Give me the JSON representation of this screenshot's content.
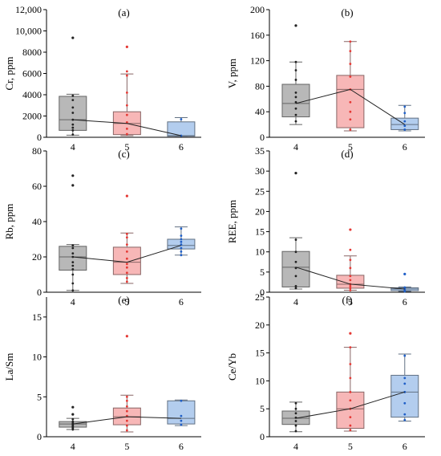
{
  "chart_data": [
    {
      "type": "box",
      "panel_label": "(a)",
      "ylabel": "Cr, ppm",
      "ylim": [
        0,
        12000
      ],
      "yticks": [
        0,
        2000,
        4000,
        6000,
        8000,
        10000,
        12000
      ],
      "ytick_labels": [
        "0",
        "2000",
        "4000",
        "6000",
        "8000",
        "10,000",
        "12,000"
      ],
      "categories": [
        "4",
        "5",
        "6"
      ],
      "boxes": [
        {
          "whisker_low": 200,
          "q1": 650,
          "median": 1650,
          "q3": 3850,
          "whisker_high": 4050,
          "outliers": [
            9350
          ],
          "points": [
            250,
            650,
            900,
            1200,
            1650,
            2300,
            2800,
            3500,
            3900
          ]
        },
        {
          "whisker_low": 150,
          "q1": 250,
          "median": 1300,
          "q3": 2400,
          "whisker_high": 5950,
          "outliers": [
            8500
          ],
          "points": [
            300,
            800,
            1400,
            2100,
            3000,
            4200,
            5800,
            6200
          ]
        },
        {
          "whisker_low": 100,
          "q1": 100,
          "median": 150,
          "q3": 1450,
          "whisker_high": 1850,
          "outliers": [],
          "points": [
            150,
            1700
          ]
        }
      ],
      "colors": [
        "#b8b8b8",
        "#f7b7b7",
        "#b3cdee"
      ],
      "point_colors": [
        "#222222",
        "#e53935",
        "#1f5fc8"
      ]
    },
    {
      "type": "box",
      "panel_label": "(b)",
      "ylabel": "V, ppm",
      "ylim": [
        0,
        200
      ],
      "yticks": [
        0,
        40,
        80,
        120,
        160,
        200
      ],
      "ytick_labels": [
        "0",
        "40",
        "80",
        "120",
        "160",
        "200"
      ],
      "categories": [
        "4",
        "5",
        "6"
      ],
      "boxes": [
        {
          "whisker_low": 20,
          "q1": 32,
          "median": 53,
          "q3": 83,
          "whisker_high": 118,
          "outliers": [
            175
          ],
          "points": [
            25,
            35,
            45,
            55,
            63,
            70,
            90,
            105,
            118
          ]
        },
        {
          "whisker_low": 10,
          "q1": 15,
          "median": 75,
          "q3": 97,
          "whisker_high": 150,
          "outliers": [],
          "points": [
            12,
            28,
            40,
            55,
            75,
            95,
            115,
            135,
            150
          ]
        },
        {
          "whisker_low": 10,
          "q1": 12,
          "median": 20,
          "q3": 30,
          "whisker_high": 50,
          "outliers": [],
          "points": [
            12,
            18,
            25,
            38,
            48
          ]
        }
      ],
      "colors": [
        "#b8b8b8",
        "#f7b7b7",
        "#b3cdee"
      ],
      "point_colors": [
        "#222222",
        "#e53935",
        "#1f5fc8"
      ]
    },
    {
      "type": "box",
      "panel_label": "(c)",
      "ylabel": "Rb, ppm",
      "ylim": [
        0,
        80
      ],
      "yticks": [
        0,
        20,
        40,
        60,
        80
      ],
      "ytick_labels": [
        "0",
        "20",
        "40",
        "60",
        "80"
      ],
      "categories": [
        "4",
        "5",
        "6"
      ],
      "boxes": [
        {
          "whisker_low": 1,
          "q1": 12.5,
          "median": 20,
          "q3": 26,
          "whisker_high": 27,
          "outliers": [
            60.5,
            66
          ],
          "points": [
            1,
            5,
            10,
            13,
            15,
            17,
            20,
            22,
            25,
            26.5
          ]
        },
        {
          "whisker_low": 5,
          "q1": 10,
          "median": 17,
          "q3": 25.5,
          "whisker_high": 33.5,
          "outliers": [
            54.5
          ],
          "points": [
            6,
            8,
            11,
            14,
            16,
            19,
            23,
            27,
            31,
            33
          ]
        },
        {
          "whisker_low": 21,
          "q1": 24.5,
          "median": 26.5,
          "q3": 30,
          "whisker_high": 37,
          "outliers": [],
          "points": [
            21,
            23,
            25,
            27,
            28.5,
            30,
            32,
            36
          ]
        }
      ],
      "colors": [
        "#b8b8b8",
        "#f7b7b7",
        "#b3cdee"
      ],
      "point_colors": [
        "#222222",
        "#e53935",
        "#1f5fc8"
      ]
    },
    {
      "type": "box",
      "panel_label": "(d)",
      "ylabel": "REE, ppm",
      "ylim": [
        0,
        35
      ],
      "yticks": [
        0,
        5,
        10,
        15,
        20,
        25,
        30,
        35
      ],
      "ytick_labels": [
        "0",
        "5",
        "10",
        "15",
        "20",
        "25",
        "30",
        "35"
      ],
      "categories": [
        "4",
        "5",
        "6"
      ],
      "boxes": [
        {
          "whisker_low": 0.8,
          "q1": 1.3,
          "median": 6.2,
          "q3": 10.1,
          "whisker_high": 13.5,
          "outliers": [
            29.5
          ],
          "points": [
            1,
            1.5,
            4,
            6,
            7.5,
            10,
            13
          ]
        },
        {
          "whisker_low": 0.5,
          "q1": 1.0,
          "median": 2.0,
          "q3": 4.2,
          "whisker_high": 9.0,
          "outliers": [
            15.5
          ],
          "points": [
            0.5,
            1,
            1.5,
            2,
            3,
            4,
            6,
            8,
            10.5
          ]
        },
        {
          "whisker_low": 0.2,
          "q1": 0.4,
          "median": 0.8,
          "q3": 1.1,
          "whisker_high": 1.3,
          "outliers": [
            4.5
          ],
          "points": [
            0.2,
            0.5,
            0.8,
            1,
            1.2
          ]
        }
      ],
      "colors": [
        "#b8b8b8",
        "#f7b7b7",
        "#b3cdee"
      ],
      "point_colors": [
        "#222222",
        "#e53935",
        "#1f5fc8"
      ]
    },
    {
      "type": "box",
      "panel_label": "(e)",
      "ylabel": "La/Sm",
      "ylim": [
        0,
        17.5
      ],
      "yticks": [
        0,
        5,
        10,
        15
      ],
      "ytick_labels": [
        "0",
        "5",
        "10",
        "15"
      ],
      "categories": [
        "4",
        "5",
        "6"
      ],
      "boxes": [
        {
          "whisker_low": 0.9,
          "q1": 1.2,
          "median": 1.6,
          "q3": 1.9,
          "whisker_high": 2.3,
          "outliers": [
            2.8,
            3.7
          ],
          "points": [
            0.9,
            1.1,
            1.3,
            1.5,
            1.7,
            1.9,
            2.2
          ]
        },
        {
          "whisker_low": 0.6,
          "q1": 1.5,
          "median": 2.5,
          "q3": 3.6,
          "whisker_high": 5.2,
          "outliers": [
            12.6
          ],
          "points": [
            0.8,
            1.4,
            2.0,
            2.6,
            3.2,
            3.8,
            4.5,
            5.0
          ]
        },
        {
          "whisker_low": 1.4,
          "q1": 1.6,
          "median": 2.3,
          "q3": 4.5,
          "whisker_high": 4.6,
          "outliers": [],
          "points": [
            1.5,
            2.0,
            2.6,
            4.5
          ]
        }
      ],
      "colors": [
        "#b8b8b8",
        "#f7b7b7",
        "#b3cdee"
      ],
      "point_colors": [
        "#222222",
        "#e53935",
        "#1f5fc8"
      ]
    },
    {
      "type": "box",
      "panel_label": "(f)",
      "ylabel": "Ce/Yb",
      "ylim": [
        0,
        25
      ],
      "yticks": [
        0,
        5,
        10,
        15,
        20,
        25
      ],
      "ytick_labels": [
        "0",
        "5",
        "10",
        "15",
        "20",
        "25"
      ],
      "categories": [
        "4",
        "5",
        "6"
      ],
      "boxes": [
        {
          "whisker_low": 0.9,
          "q1": 2.2,
          "median": 3.3,
          "q3": 4.6,
          "whisker_high": 6.2,
          "outliers": [],
          "points": [
            1,
            2,
            2.8,
            3.4,
            4.2,
            5.0,
            6.0
          ]
        },
        {
          "whisker_low": 1.0,
          "q1": 1.5,
          "median": 5.0,
          "q3": 8.0,
          "whisker_high": 16.0,
          "outliers": [
            18.5
          ],
          "points": [
            1.2,
            2,
            3.5,
            5,
            6.5,
            8,
            10.5,
            13,
            16
          ]
        },
        {
          "whisker_low": 2.8,
          "q1": 3.5,
          "median": 8.0,
          "q3": 11.0,
          "whisker_high": 14.8,
          "outliers": [],
          "points": [
            3,
            4,
            6,
            8,
            9.5,
            10.5,
            14.5
          ]
        }
      ],
      "colors": [
        "#b8b8b8",
        "#f7b7b7",
        "#b3cdee"
      ],
      "point_colors": [
        "#222222",
        "#e53935",
        "#1f5fc8"
      ]
    }
  ]
}
